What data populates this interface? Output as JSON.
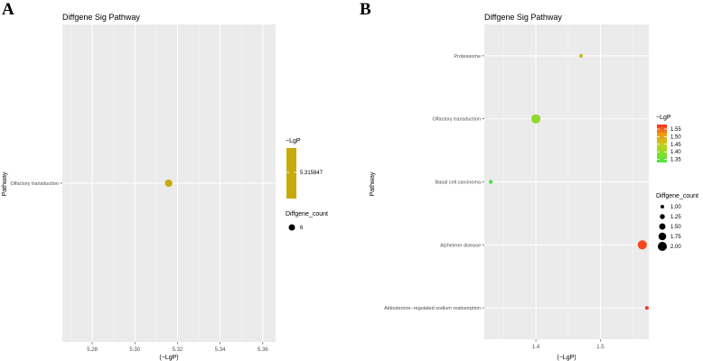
{
  "panels": [
    {
      "letter": "A",
      "title": "Diffgene Sig Pathway",
      "ylabel": "Pathway",
      "xlabel": "(−LgP)",
      "legend_color_title": "−LgP",
      "legend_color_label": "5.315847",
      "legend_size_title": "Diffgene_count",
      "legend_size_label": "6"
    },
    {
      "letter": "B",
      "title": "Diffgene Sig Pathway",
      "ylabel": "Pathway",
      "xlabel": "(−LgP)",
      "legend_color_title": "−LgP",
      "legend_size_title": "Diffgene_count"
    }
  ],
  "chart_data": [
    {
      "type": "scatter",
      "title": "Diffgene Sig Pathway",
      "xlabel": "(−LgP)",
      "ylabel": "Pathway",
      "xlim": [
        5.266,
        5.366
      ],
      "xticks": [
        "5.28",
        "5.30",
        "5.32",
        "5.34",
        "5.36"
      ],
      "xtick_values": [
        5.28,
        5.3,
        5.32,
        5.34,
        5.36
      ],
      "categories": [
        "Olfactory transduction"
      ],
      "points": [
        {
          "pathway": "Olfactory transduction",
          "x": 5.315847,
          "count": 6,
          "neglogp": 5.315847
        }
      ],
      "color": "#C8AA0A",
      "legend_color_label": "5.315847",
      "legend_size_label": "6"
    },
    {
      "type": "scatter",
      "title": "Diffgene Sig Pathway",
      "xlabel": "(−LgP)",
      "ylabel": "Pathway",
      "xlim": [
        1.32,
        1.575
      ],
      "xticks": [
        "1.4",
        "1.5"
      ],
      "xtick_values": [
        1.4,
        1.5
      ],
      "categories": [
        "Proteasome",
        "Olfactory transduction",
        "Basal cell carcinoma",
        "Alzheimer disease",
        "Aldosterone−regulated sodium reabsorption"
      ],
      "points": [
        {
          "pathway": "Proteasome",
          "x": 1.47,
          "count": 1,
          "neglogp": 1.47
        },
        {
          "pathway": "Olfactory transduction",
          "x": 1.4,
          "count": 2,
          "neglogp": 1.4
        },
        {
          "pathway": "Basal cell carcinoma",
          "x": 1.33,
          "count": 1,
          "neglogp": 1.33
        },
        {
          "pathway": "Alzheimer disease",
          "x": 1.565,
          "count": 2,
          "neglogp": 1.565
        },
        {
          "pathway": "Aldosterone−regulated sodium reabsorption",
          "x": 1.572,
          "count": 1,
          "neglogp": 1.572
        }
      ],
      "color_scale": {
        "low": "#46E83C",
        "high": "#FF2A1E",
        "range": [
          1.33,
          1.58
        ]
      },
      "colorbar_ticks": [
        "1.55",
        "1.50",
        "1.45",
        "1.40",
        "1.35"
      ],
      "colorbar_tick_values": [
        1.55,
        1.5,
        1.45,
        1.4,
        1.35
      ],
      "size_legend_labels": [
        "1.00",
        "1.25",
        "1.50",
        "1.75",
        "2.00"
      ],
      "size_legend_values": [
        1.0,
        1.25,
        1.5,
        1.75,
        2.0
      ]
    }
  ]
}
